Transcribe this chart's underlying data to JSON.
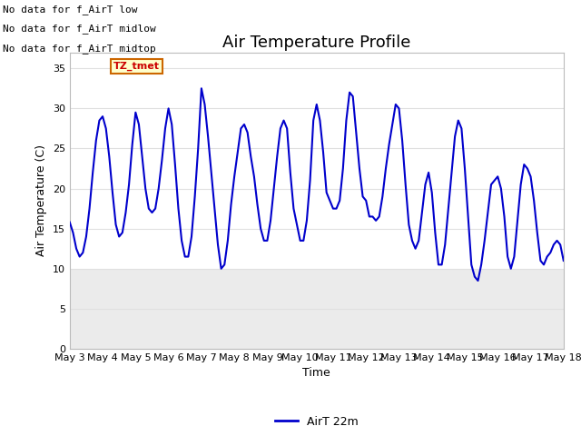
{
  "title": "Air Temperature Profile",
  "xlabel": "Time",
  "ylabel": "Air Temperature (C)",
  "legend_label": "AirT 22m",
  "ylim": [
    0,
    37
  ],
  "yticks": [
    0,
    5,
    10,
    15,
    20,
    25,
    30,
    35
  ],
  "x_tick_labels": [
    "May 3",
    "May 4",
    "May 5",
    "May 6",
    "May 7",
    "May 8",
    "May 9",
    "May 10",
    "May 11",
    "May 12",
    "May 13",
    "May 14",
    "May 15",
    "May 16",
    "May 17",
    "May 18"
  ],
  "no_data_lines": [
    "No data for f_AirT low",
    "No data for f_AirT midlow",
    "No data for f_AirT midtop"
  ],
  "tz_label": "TZ_tmet",
  "line_color": "#0000cc",
  "fig_bg_color": "#ffffff",
  "plot_bg_color": "#ffffff",
  "shade_bg_color": "#ebebeb",
  "grid_color": "#e0e0e0",
  "x_values": [
    3.0,
    3.1,
    3.2,
    3.3,
    3.4,
    3.5,
    3.6,
    3.7,
    3.8,
    3.9,
    4.0,
    4.1,
    4.2,
    4.3,
    4.4,
    4.5,
    4.6,
    4.7,
    4.8,
    4.9,
    5.0,
    5.1,
    5.2,
    5.3,
    5.4,
    5.5,
    5.6,
    5.7,
    5.8,
    5.9,
    6.0,
    6.1,
    6.2,
    6.3,
    6.4,
    6.5,
    6.6,
    6.7,
    6.8,
    6.9,
    7.0,
    7.1,
    7.2,
    7.3,
    7.4,
    7.5,
    7.6,
    7.7,
    7.8,
    7.9,
    8.0,
    8.1,
    8.2,
    8.3,
    8.4,
    8.5,
    8.6,
    8.7,
    8.8,
    8.9,
    9.0,
    9.1,
    9.2,
    9.3,
    9.4,
    9.5,
    9.6,
    9.7,
    9.8,
    9.9,
    10.0,
    10.1,
    10.2,
    10.3,
    10.4,
    10.5,
    10.6,
    10.7,
    10.8,
    10.9,
    11.0,
    11.1,
    11.2,
    11.3,
    11.4,
    11.5,
    11.6,
    11.7,
    11.8,
    11.9,
    12.0,
    12.1,
    12.2,
    12.3,
    12.4,
    12.5,
    12.6,
    12.7,
    12.8,
    12.9,
    13.0,
    13.1,
    13.2,
    13.3,
    13.4,
    13.5,
    13.6,
    13.7,
    13.8,
    13.9,
    14.0,
    14.1,
    14.2,
    14.3,
    14.4,
    14.5,
    14.6,
    14.7,
    14.8,
    14.9,
    15.0,
    15.1,
    15.2,
    15.3,
    15.4,
    15.5,
    15.6,
    15.7,
    15.8,
    15.9,
    16.0,
    16.1,
    16.2,
    16.3,
    16.4,
    16.5,
    16.6,
    16.7,
    16.8,
    16.9,
    17.0,
    17.1,
    17.2,
    17.3,
    17.4,
    17.5,
    17.6,
    17.7,
    17.8,
    17.9,
    18.0
  ],
  "y_values": [
    15.8,
    14.5,
    12.5,
    11.5,
    12.0,
    14.0,
    17.5,
    22.0,
    26.0,
    28.5,
    29.0,
    27.5,
    24.0,
    19.5,
    15.5,
    14.0,
    14.5,
    17.0,
    20.5,
    25.5,
    29.5,
    28.0,
    24.0,
    20.0,
    17.5,
    17.0,
    17.5,
    20.0,
    23.5,
    27.5,
    30.0,
    28.0,
    23.0,
    17.5,
    13.5,
    11.5,
    11.5,
    14.0,
    19.0,
    25.0,
    32.5,
    30.5,
    26.5,
    22.0,
    17.5,
    13.0,
    10.0,
    10.5,
    13.5,
    18.0,
    21.5,
    24.5,
    27.5,
    28.0,
    27.0,
    24.0,
    21.5,
    18.0,
    15.0,
    13.5,
    13.5,
    16.0,
    20.0,
    24.0,
    27.5,
    28.5,
    27.5,
    22.0,
    17.5,
    15.5,
    13.5,
    13.5,
    16.0,
    21.0,
    28.5,
    30.5,
    28.5,
    24.5,
    19.5,
    18.5,
    17.5,
    17.5,
    18.5,
    22.5,
    28.5,
    32.0,
    31.5,
    27.0,
    22.5,
    19.0,
    18.5,
    16.5,
    16.5,
    16.0,
    16.5,
    19.0,
    22.5,
    25.5,
    28.0,
    30.5,
    30.0,
    26.0,
    20.5,
    15.5,
    13.5,
    12.5,
    13.5,
    17.0,
    20.5,
    22.0,
    19.5,
    14.5,
    10.5,
    10.5,
    13.0,
    17.5,
    22.0,
    26.5,
    28.5,
    27.5,
    22.5,
    16.5,
    10.5,
    9.0,
    8.5,
    10.5,
    13.5,
    17.0,
    20.5,
    21.0,
    21.5,
    20.0,
    16.5,
    11.5,
    10.0,
    11.5,
    16.0,
    20.5,
    23.0,
    22.5,
    21.5,
    18.5,
    14.5,
    11.0,
    10.5,
    11.5,
    12.0,
    13.0,
    13.5,
    13.0,
    11.0
  ]
}
